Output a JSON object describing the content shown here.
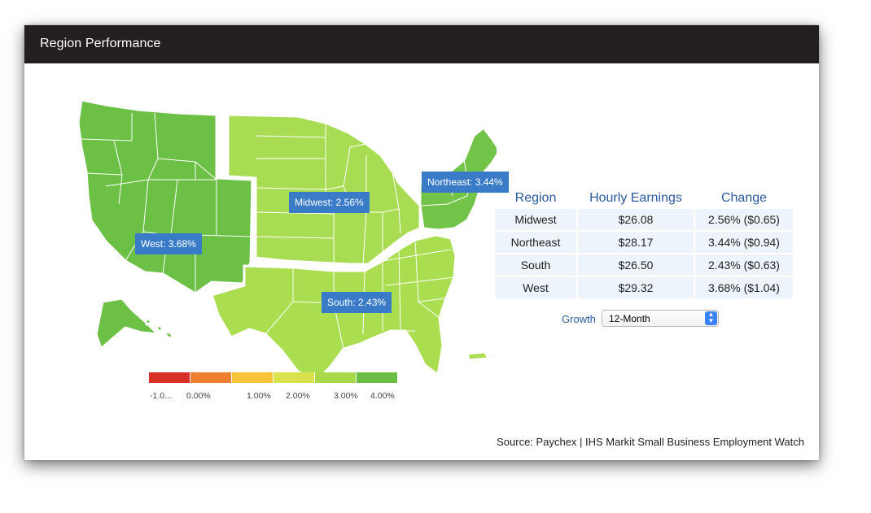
{
  "header": {
    "title": "Region Performance"
  },
  "map": {
    "regions": [
      {
        "name": "West",
        "label": "West: 3.68%",
        "color": "#6cc046"
      },
      {
        "name": "Midwest",
        "label": "Midwest: 2.56%",
        "color": "#a8dc52"
      },
      {
        "name": "Northeast",
        "label": "Northeast: 3.44%",
        "color": "#72c448"
      },
      {
        "name": "South",
        "label": "South: 2.43%",
        "color": "#aadd50"
      }
    ],
    "state_border_color": "#ffffff"
  },
  "legend": {
    "ticks": [
      "-1.0...",
      "0.00%",
      "1.00%",
      "2.00%",
      "3.00%",
      "4.00%"
    ],
    "colors": [
      "#d73027",
      "#ee7f2f",
      "#f6c33a",
      "#d8e24c",
      "#a8d94a",
      "#6cbf45"
    ]
  },
  "table": {
    "headers": [
      "Region",
      "Hourly Earnings",
      "Change"
    ],
    "rows": [
      [
        "Midwest",
        "$26.08",
        "2.56% ($0.65)"
      ],
      [
        "Northeast",
        "$28.17",
        "3.44% ($0.94)"
      ],
      [
        "South",
        "$26.50",
        "2.43% ($0.63)"
      ],
      [
        "West",
        "$29.32",
        "3.68% ($1.04)"
      ]
    ]
  },
  "growth": {
    "label": "Growth",
    "selected": "12-Month"
  },
  "source": "Source: Paychex | IHS Markit Small Business Employment Watch"
}
